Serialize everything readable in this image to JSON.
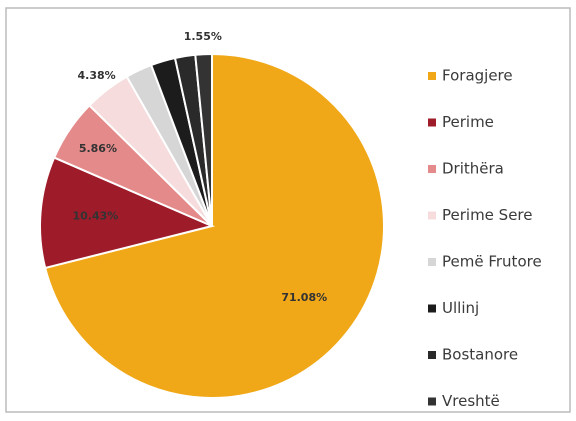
{
  "chart_data": {
    "type": "pie",
    "categories": [
      "Foragjere",
      "Perime",
      "Drithëra",
      "Perime Sere",
      "Pemë Frutore",
      "Ullinj",
      "Bostanore",
      "Vreshtë"
    ],
    "values": [
      71.08,
      10.43,
      5.86,
      4.38,
      2.5,
      2.3,
      1.9,
      1.55
    ],
    "value_labels": [
      "71.08%",
      "10.43%",
      "5.86%",
      "4.38%",
      null,
      null,
      null,
      "1.55%"
    ],
    "colors": [
      "#f0a818",
      "#9e1c2a",
      "#e58a8a",
      "#f6dcdc",
      "#d6d6d6",
      "#1c1c1c",
      "#2a2a2a",
      "#333333"
    ],
    "legend": "right"
  }
}
